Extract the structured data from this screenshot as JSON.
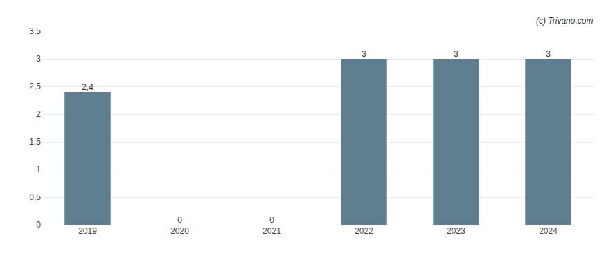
{
  "chart_data": {
    "type": "bar",
    "categories": [
      "2019",
      "2020",
      "2021",
      "2022",
      "2023",
      "2024"
    ],
    "values": [
      2.4,
      0,
      0,
      3,
      3,
      3
    ],
    "value_labels": [
      "2,4",
      "0",
      "0",
      "3",
      "3",
      "3"
    ],
    "data_labels": true,
    "color": "#5f7f90",
    "ylim": [
      0,
      3.5
    ],
    "yticks": [
      0,
      {
        "value": 0.5,
        "label": "0,5"
      },
      1,
      {
        "value": 1.5,
        "label": "1,5"
      },
      2,
      {
        "value": 2.5,
        "label": "2,5"
      },
      3,
      {
        "value": 3.5,
        "label": "3,5"
      }
    ],
    "grid": true,
    "annotations": [
      "(c) Trivano.com"
    ]
  }
}
